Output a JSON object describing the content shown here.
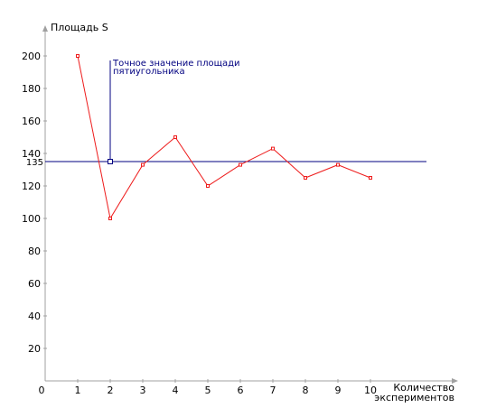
{
  "chart_data": {
    "type": "line",
    "title": "",
    "xlabel": "Количество экспериментов",
    "xlabel_lines": [
      "Количество",
      "экспериментов"
    ],
    "ylabel": "Площадь S",
    "xlim": [
      0,
      11
    ],
    "ylim": [
      0,
      210
    ],
    "x_ticks": [
      0,
      1,
      2,
      3,
      4,
      5,
      6,
      7,
      8,
      9,
      10
    ],
    "x_tick_labels": [
      "0",
      "1",
      "2",
      "3",
      "4",
      "5",
      "6",
      "7",
      "8",
      "9",
      "10"
    ],
    "y_ticks": [
      20,
      40,
      60,
      80,
      100,
      120,
      140,
      160,
      180,
      200
    ],
    "y_tick_labels": [
      "20",
      "40",
      "60",
      "80",
      "100",
      "120",
      "140",
      "160",
      "180",
      "200"
    ],
    "grid": false,
    "legend": "none",
    "series": [
      {
        "color": "#ee1c1c",
        "x": [
          1,
          2,
          3,
          4,
          5,
          6,
          7,
          8,
          9,
          10
        ],
        "y": [
          200,
          100,
          133,
          150,
          120,
          133,
          143,
          125,
          133,
          125
        ]
      }
    ],
    "reference_line": {
      "y": 135,
      "value_label": "135",
      "color": "#000080"
    },
    "annotation": {
      "text_lines": [
        "Точное значение площади",
        "пятиугольника"
      ],
      "x": 2,
      "y": 135,
      "color": "#000080"
    },
    "colors": {
      "axis": "#a0a0a0",
      "series": "#ee1c1c",
      "reference": "#000080"
    }
  }
}
